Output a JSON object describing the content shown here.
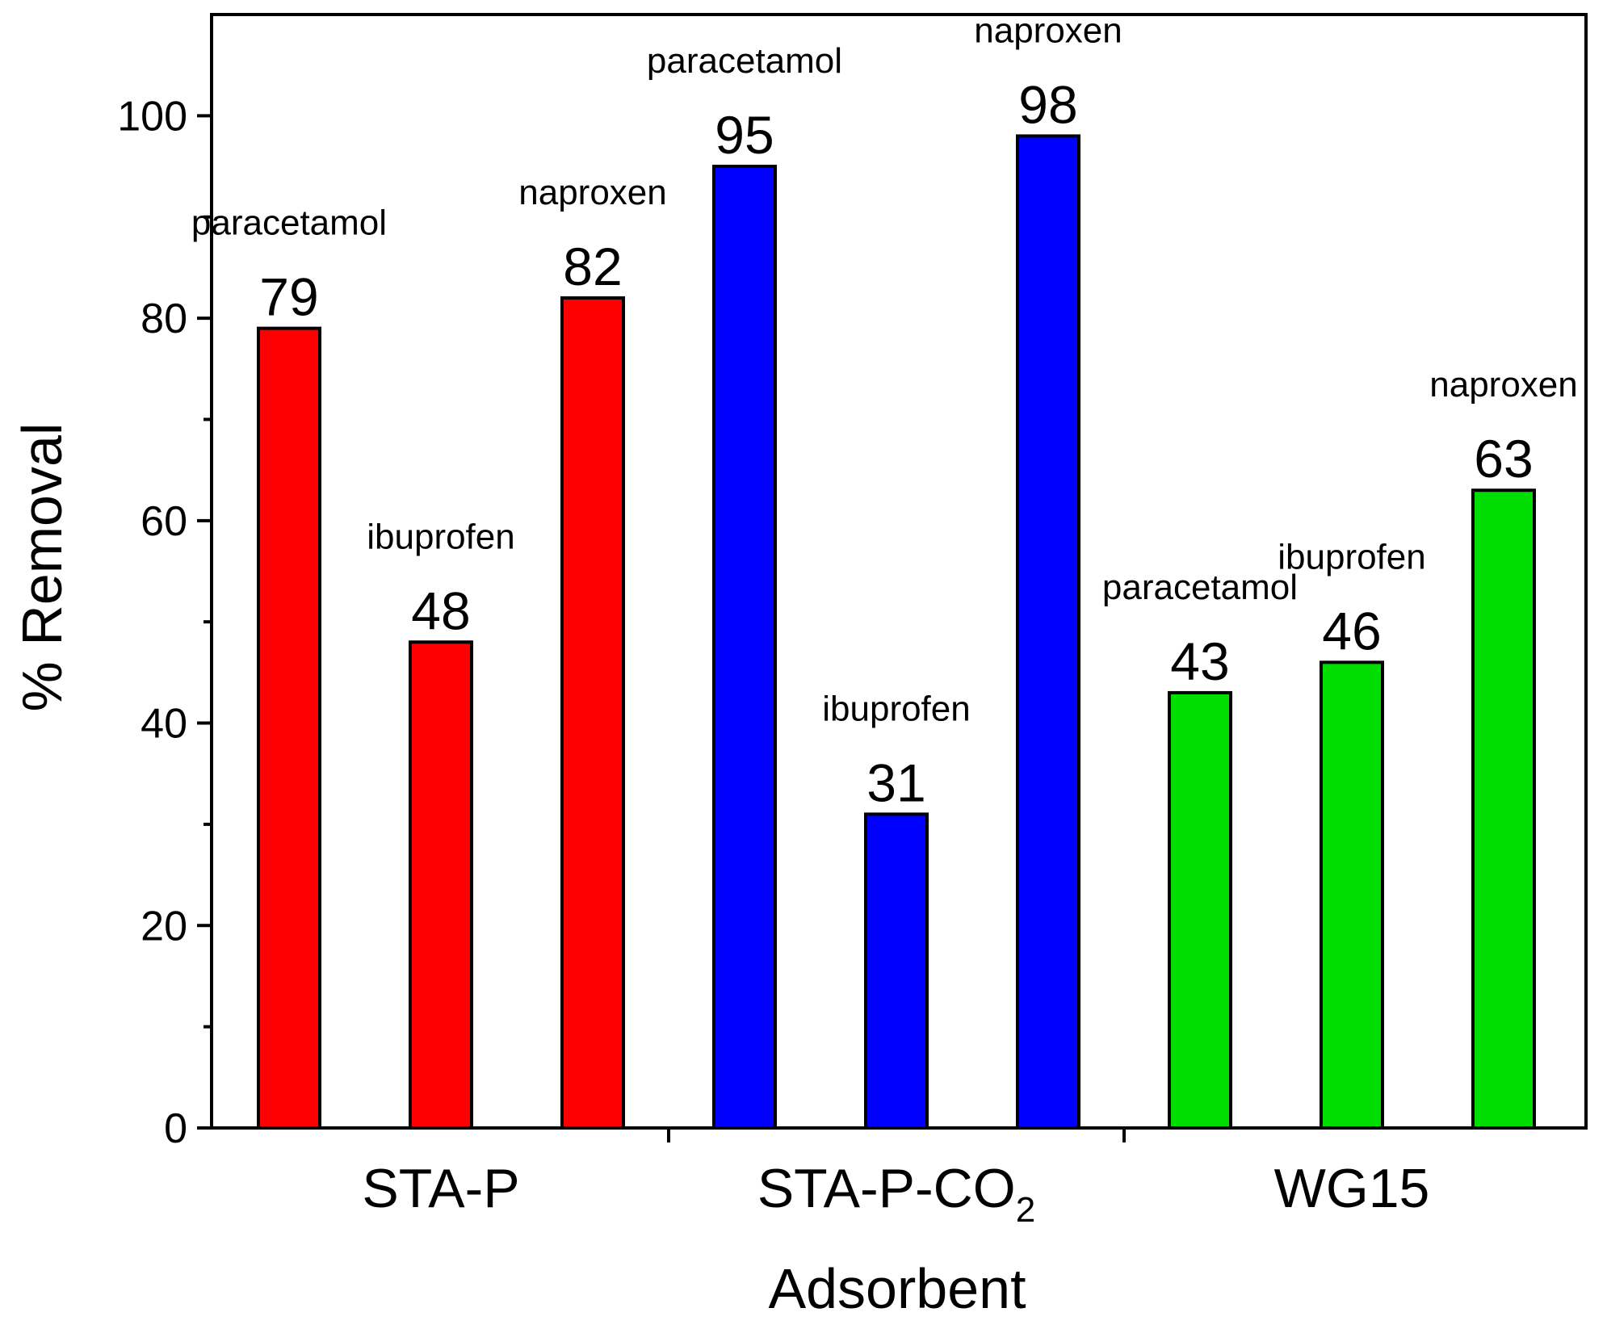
{
  "chart_data": {
    "type": "bar",
    "xlabel": "Adsorbent",
    "ylabel": "% Removal",
    "ylim": [
      0,
      110
    ],
    "yticks": [
      0,
      20,
      40,
      60,
      80,
      100
    ],
    "groups": [
      {
        "name": "STA-P",
        "color": "#ff0000",
        "bars": [
          {
            "label": "paracetamol",
            "value": 79,
            "value_label": "79"
          },
          {
            "label": "ibuprofen",
            "value": 48,
            "value_label": "48"
          },
          {
            "label": "naproxen",
            "value": 82,
            "value_label": "82"
          }
        ]
      },
      {
        "name": "STA-P-CO",
        "name_subscript": "2",
        "color": "#0000ff",
        "bars": [
          {
            "label": "paracetamol",
            "value": 95,
            "value_label": "95"
          },
          {
            "label": "ibuprofen",
            "value": 31,
            "value_label": "31"
          },
          {
            "label": "naproxen",
            "value": 98,
            "value_label": "98"
          }
        ]
      },
      {
        "name": "WG15",
        "color": "#00dd00",
        "bars": [
          {
            "label": "paracetamol",
            "value": 43,
            "value_label": "43"
          },
          {
            "label": "ibuprofen",
            "value": 46,
            "value_label": "46"
          },
          {
            "label": "naproxen",
            "value": 63,
            "value_label": "63"
          }
        ]
      }
    ]
  }
}
